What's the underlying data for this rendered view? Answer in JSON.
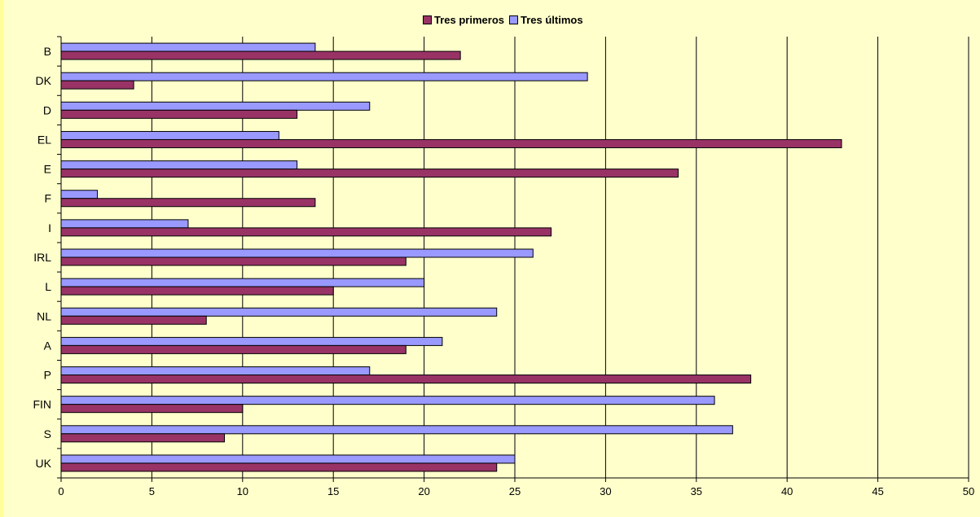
{
  "chart_data": {
    "type": "bar",
    "orientation": "horizontal",
    "categories": [
      "B",
      "DK",
      "D",
      "EL",
      "E",
      "F",
      "I",
      "IRL",
      "L",
      "NL",
      "A",
      "P",
      "FIN",
      "S",
      "UK"
    ],
    "series": [
      {
        "name": "Tres primeros",
        "color": "#993366",
        "values": [
          22,
          4,
          13,
          43,
          34,
          14,
          27,
          19,
          15,
          8,
          19,
          38,
          10,
          9,
          24
        ]
      },
      {
        "name": "Tres últimos",
        "color": "#9999ff",
        "values": [
          14,
          29,
          17,
          12,
          13,
          2,
          7,
          26,
          20,
          24,
          21,
          17,
          36,
          37,
          25
        ]
      }
    ],
    "xlim": [
      0,
      50
    ],
    "xticks": [
      0,
      5,
      10,
      15,
      20,
      25,
      30,
      35,
      40,
      45,
      50
    ],
    "grid": "vertical",
    "legend_position": "top"
  }
}
